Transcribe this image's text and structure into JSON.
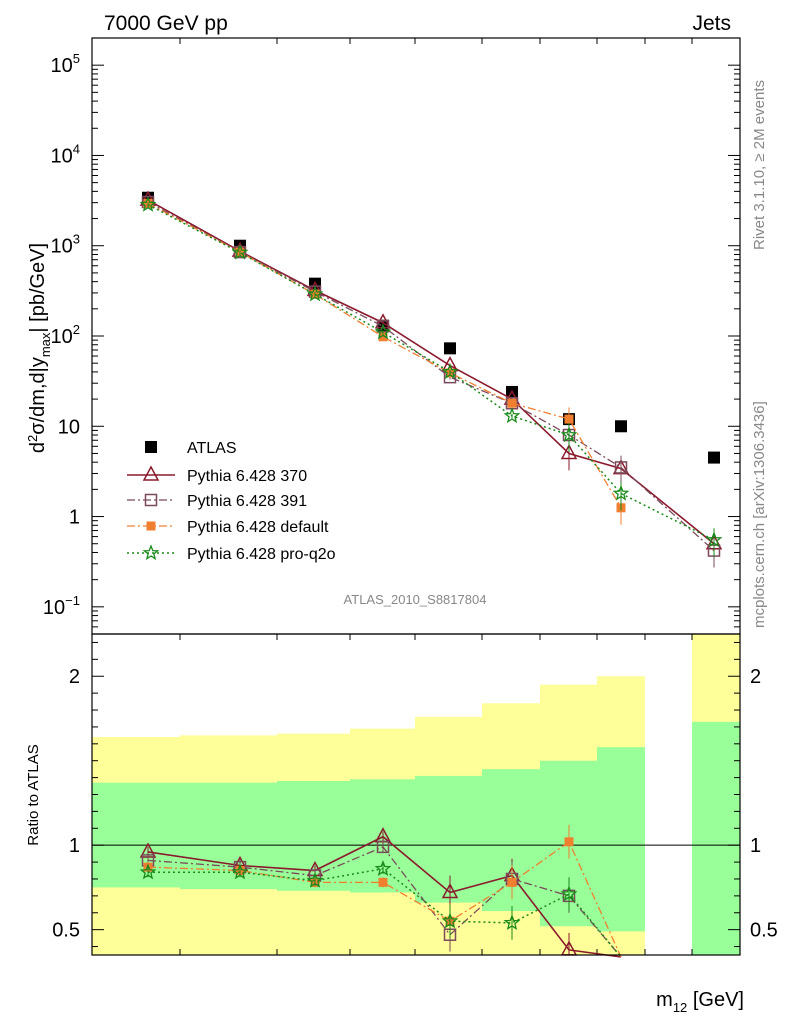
{
  "header": {
    "left": "7000 GeV pp",
    "right": "Jets"
  },
  "side_labels": {
    "rivet": "Rivet 3.1.10, ≥ 2M events",
    "mcplots": "mcplots.cern.ch [arXiv:1306.3436]"
  },
  "analysis_id": "ATLAS_2010_S8817804",
  "colors": {
    "atlas": "#000000",
    "p370": "#8b1a2e",
    "p391": "#7a4a5a",
    "pdefault": "#f07f30",
    "pq2o": "#1a8a1a",
    "band_inner": "#99ff99",
    "band_outer": "#ffff99"
  },
  "chart_data": [
    {
      "type": "line",
      "panel": "main",
      "y_scale": "log",
      "ylim": [
        0.05,
        200000
      ],
      "xlabel": "m12 [GeV]",
      "ylabel": "d2σ/dm,d|ymax| [pb/GeV]",
      "y_ticks": [
        {
          "value": 0.1,
          "base": "10",
          "exp": "−1"
        },
        {
          "value": 1,
          "base": "1",
          "exp": ""
        },
        {
          "value": 10,
          "base": "10",
          "exp": ""
        },
        {
          "value": 100,
          "base": "10",
          "exp": "2"
        },
        {
          "value": 1000,
          "base": "10",
          "exp": "3"
        },
        {
          "value": 10000,
          "base": "10",
          "exp": "4"
        },
        {
          "value": 100000,
          "base": "10",
          "exp": "5"
        }
      ],
      "x": [
        1,
        2,
        3,
        4,
        5,
        6,
        7,
        8,
        9
      ],
      "series": [
        {
          "name": "ATLAS",
          "marker": "square",
          "values": [
            3400,
            1000,
            380,
            130,
            73,
            24,
            12,
            10,
            4.5
          ]
        },
        {
          "name": "Pythia 6.428 370",
          "marker": "triangle",
          "values": [
            3200,
            870,
            320,
            140,
            47,
            20,
            5,
            3.4,
            0.5
          ]
        },
        {
          "name": "Pythia 6.428 391",
          "marker": "open-square",
          "values": [
            3050,
            850,
            310,
            128,
            35,
            18,
            8,
            3.5,
            0.42
          ]
        },
        {
          "name": "Pythia 6.428 default",
          "marker": "filled-square",
          "values": [
            2950,
            850,
            290,
            98,
            39,
            18,
            12,
            1.25,
            null
          ]
        },
        {
          "name": "Pythia 6.428 pro-q2o",
          "marker": "star",
          "values": [
            2850,
            840,
            290,
            110,
            40,
            13,
            8,
            1.8,
            0.55
          ]
        }
      ]
    },
    {
      "type": "line",
      "panel": "ratio",
      "ylabel": "Ratio to ATLAS",
      "ylim": [
        0.35,
        2.25
      ],
      "y_ticks": [
        "0.5",
        "1",
        "2"
      ],
      "band_inner": [
        [
          0.75,
          1.37
        ],
        [
          0.74,
          1.37
        ],
        [
          0.73,
          1.38
        ],
        [
          0.72,
          1.39
        ],
        [
          0.66,
          1.41
        ],
        [
          0.61,
          1.45
        ],
        [
          0.52,
          1.5
        ],
        [
          0.49,
          1.58
        ],
        [
          0.3,
          1.73
        ]
      ],
      "band_outer": [
        [
          0.35,
          1.64
        ],
        [
          0.33,
          1.65
        ],
        [
          0.32,
          1.66
        ],
        [
          0.31,
          1.69
        ],
        [
          0.3,
          1.76
        ],
        [
          0.3,
          1.84
        ],
        [
          0.3,
          1.95
        ],
        [
          0.3,
          2.0
        ],
        [
          0.3,
          2.3
        ]
      ],
      "series": [
        {
          "name": "Pythia 6.428 370",
          "values": [
            0.96,
            0.88,
            0.85,
            1.05,
            0.72,
            0.82,
            0.38,
            0.25,
            null
          ]
        },
        {
          "name": "Pythia 6.428 391",
          "values": [
            0.91,
            0.87,
            0.82,
            0.99,
            0.47,
            0.8,
            0.7,
            0.3,
            null
          ]
        },
        {
          "name": "Pythia 6.428 default",
          "values": [
            0.87,
            0.85,
            0.78,
            0.78,
            0.55,
            0.78,
            1.02,
            0.25,
            null
          ]
        },
        {
          "name": "Pythia 6.428 pro-q2o",
          "values": [
            0.84,
            0.84,
            0.79,
            0.86,
            0.55,
            0.54,
            0.71,
            0.25,
            null
          ]
        }
      ]
    }
  ]
}
